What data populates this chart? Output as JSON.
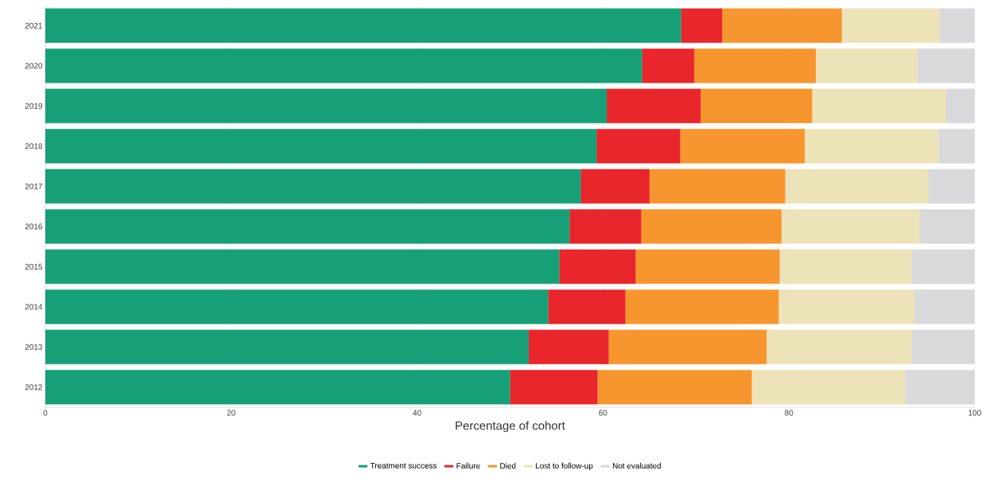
{
  "chart_data": {
    "type": "bar",
    "orientation": "horizontal",
    "stacked": true,
    "xlabel": "Percentage of cohort",
    "categories": [
      "2021",
      "2020",
      "2019",
      "2018",
      "2017",
      "2016",
      "2015",
      "2014",
      "2013",
      "2012"
    ],
    "series": [
      {
        "name": "Treatment success",
        "color": "#17a077",
        "values": [
          68.4,
          64.2,
          60.4,
          59.3,
          57.6,
          56.4,
          55.3,
          54.1,
          52.0,
          50.0
        ]
      },
      {
        "name": "Failure",
        "color": "#e8262b",
        "values": [
          4.4,
          5.6,
          10.1,
          9.0,
          7.4,
          7.7,
          8.2,
          8.3,
          8.6,
          9.4
        ]
      },
      {
        "name": "Died",
        "color": "#f7962e",
        "values": [
          12.9,
          13.1,
          12.0,
          13.4,
          14.6,
          15.1,
          15.5,
          16.5,
          17.0,
          16.6
        ]
      },
      {
        "name": "Lost to follow-up",
        "color": "#ede3b8",
        "values": [
          10.5,
          10.9,
          14.4,
          14.4,
          15.4,
          14.9,
          14.2,
          14.6,
          15.6,
          16.5
        ]
      },
      {
        "name": "Not evaluated",
        "color": "#d9d9db",
        "values": [
          3.8,
          6.2,
          3.1,
          3.9,
          5.0,
          5.9,
          6.8,
          6.5,
          6.8,
          7.5
        ]
      }
    ],
    "xlim": [
      0,
      100
    ],
    "xticks": [
      0,
      20,
      40,
      60,
      80,
      100
    ],
    "grid": "x",
    "legend": "bottom"
  }
}
